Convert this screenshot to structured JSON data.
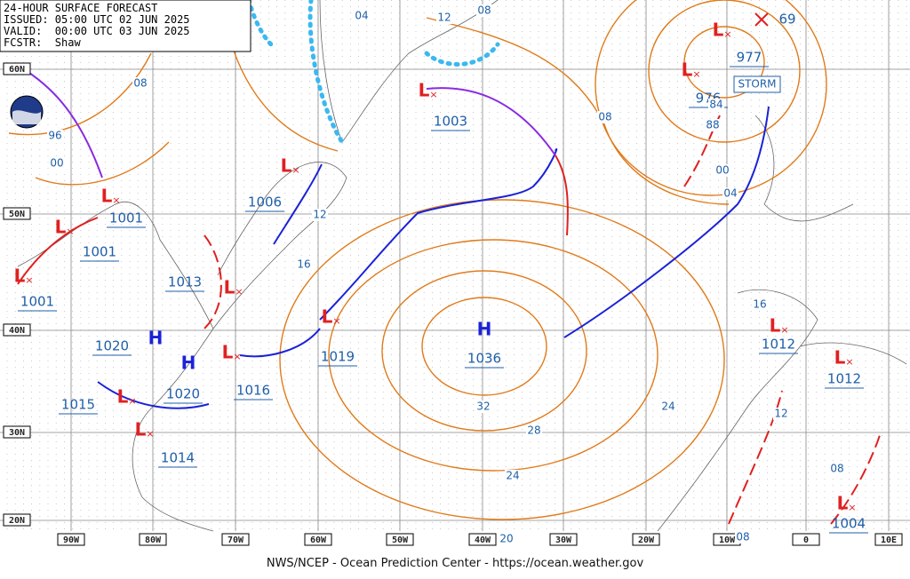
{
  "header": {
    "lines": [
      "24-HOUR SURFACE FORECAST",
      "ISSUED: 05:00 UTC 02 JUN 2025",
      "VALID:  00:00 UTC 03 JUN 2025",
      "FCSTR:  Shaw"
    ]
  },
  "footer": "NWS/NCEP - Ocean Prediction Center - https://ocean.weather.gov",
  "lat_labels": [
    "60N",
    "50N",
    "40N",
    "30N",
    "20N"
  ],
  "lon_labels": [
    "90W",
    "80W",
    "70W",
    "60W",
    "50W",
    "40W",
    "30W",
    "20W",
    "10W",
    "0",
    "10E"
  ],
  "centers": [
    {
      "symbol": "L",
      "value": "1001"
    },
    {
      "symbol": "L",
      "value": "1001"
    },
    {
      "symbol": "L",
      "value": "1001"
    },
    {
      "symbol": "L",
      "value": "1013"
    },
    {
      "symbol": "H",
      "value": "1020"
    },
    {
      "symbol": "H",
      "value": "1020"
    },
    {
      "symbol": "L",
      "value": "1015"
    },
    {
      "symbol": "L",
      "value": "1014"
    },
    {
      "symbol": "L",
      "value": "1016"
    },
    {
      "symbol": "L",
      "value": "1019"
    },
    {
      "symbol": "L",
      "value": "1006"
    },
    {
      "symbol": "L",
      "value": "1003"
    },
    {
      "symbol": "H",
      "value": "1036"
    },
    {
      "symbol": "L",
      "value": "977"
    },
    {
      "symbol": "L",
      "value": "976"
    },
    {
      "symbol": "L",
      "value": "1012"
    },
    {
      "symbol": "L",
      "value": "1012"
    },
    {
      "symbol": "L",
      "value": "1004"
    }
  ],
  "wave_height": "69",
  "storm_label": "STORM",
  "isobar_labels": [
    "04",
    "12",
    "08",
    "08",
    "96",
    "00",
    "12",
    "16",
    "08",
    "84",
    "88",
    "00",
    "04",
    "32",
    "28",
    "24",
    "24",
    "20",
    "08",
    "16",
    "12",
    "08"
  ]
}
